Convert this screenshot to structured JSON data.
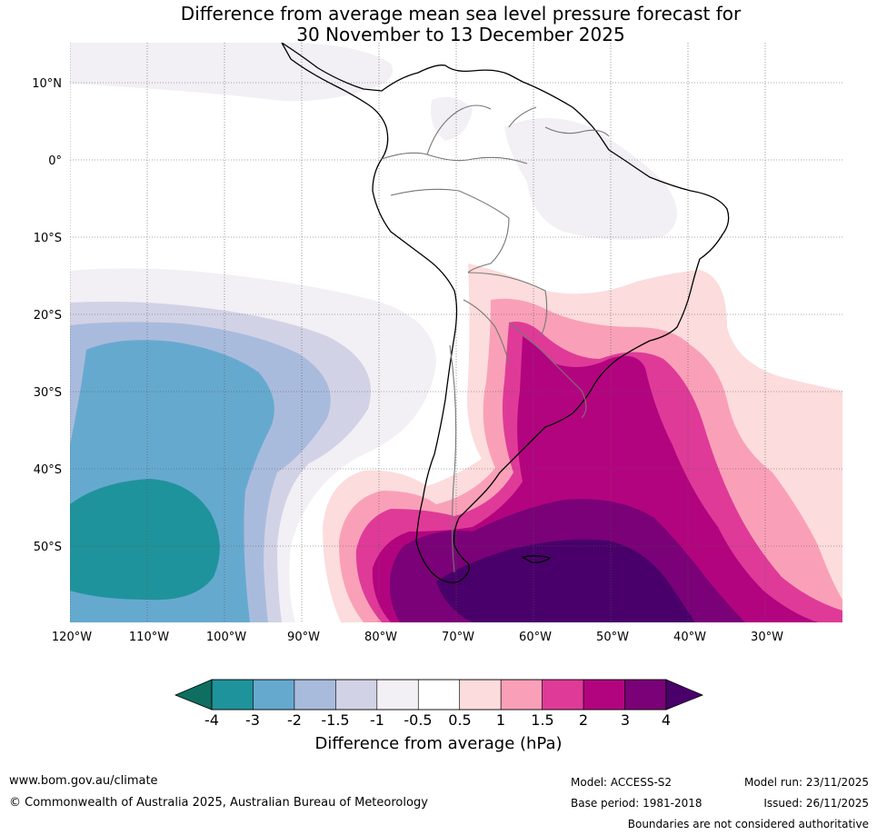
{
  "title": {
    "line1": "Difference from average mean sea level pressure forecast for",
    "line2": "30 November to 13 December 2025"
  },
  "map": {
    "latitude_labels": [
      "10°N",
      "0°",
      "10°S",
      "20°S",
      "30°S",
      "40°S",
      "50°S"
    ],
    "longitude_labels": [
      "120°W",
      "110°W",
      "100°W",
      "90°W",
      "80°W",
      "70°W",
      "60°W",
      "50°W",
      "40°W",
      "30°W"
    ],
    "extent": {
      "lon_min": -120,
      "lon_max": -20,
      "lat_min": -60,
      "lat_max": 15
    },
    "palette": {
      "neg4": "#0e6f60",
      "neg3": "#1f939b",
      "neg2": "#66a9cf",
      "neg15": "#a9bbdc",
      "neg1": "#d2d2e6",
      "neg05": "#f2eff5",
      "neutral": "#ffffff",
      "pos05": "#fcdcdc",
      "pos1": "#f9a0b8",
      "pos15": "#df3a98",
      "pos2": "#b3047f",
      "pos3": "#7a0177",
      "pos4": "#49006a"
    }
  },
  "colorbar": {
    "ticks": [
      "-4",
      "-3",
      "-2",
      "-1.5",
      "-1",
      "-0.5",
      "0.5",
      "1",
      "1.5",
      "2",
      "3",
      "4"
    ],
    "colors": [
      "#1f939b",
      "#66a9cf",
      "#a9bbdc",
      "#d2d2e6",
      "#f2eff5",
      "#ffffff",
      "#fcdcdc",
      "#f9a0b8",
      "#df3a98",
      "#b3047f",
      "#7a0177"
    ],
    "low_extend_color": "#0e6f60",
    "high_extend_color": "#49006a",
    "label": "Difference from average (hPa)"
  },
  "footer": {
    "website": "www.bom.gov.au/climate",
    "copyright": "© Commonwealth of Australia 2025, Australian Bureau of Meteorology",
    "model": "Model: ACCESS-S2",
    "base_period": "Base period: 1981-2018",
    "model_run": "Model run: 23/11/2025",
    "issued": "Issued: 26/11/2025",
    "disclaimer": "Boundaries are not considered authoritative"
  }
}
